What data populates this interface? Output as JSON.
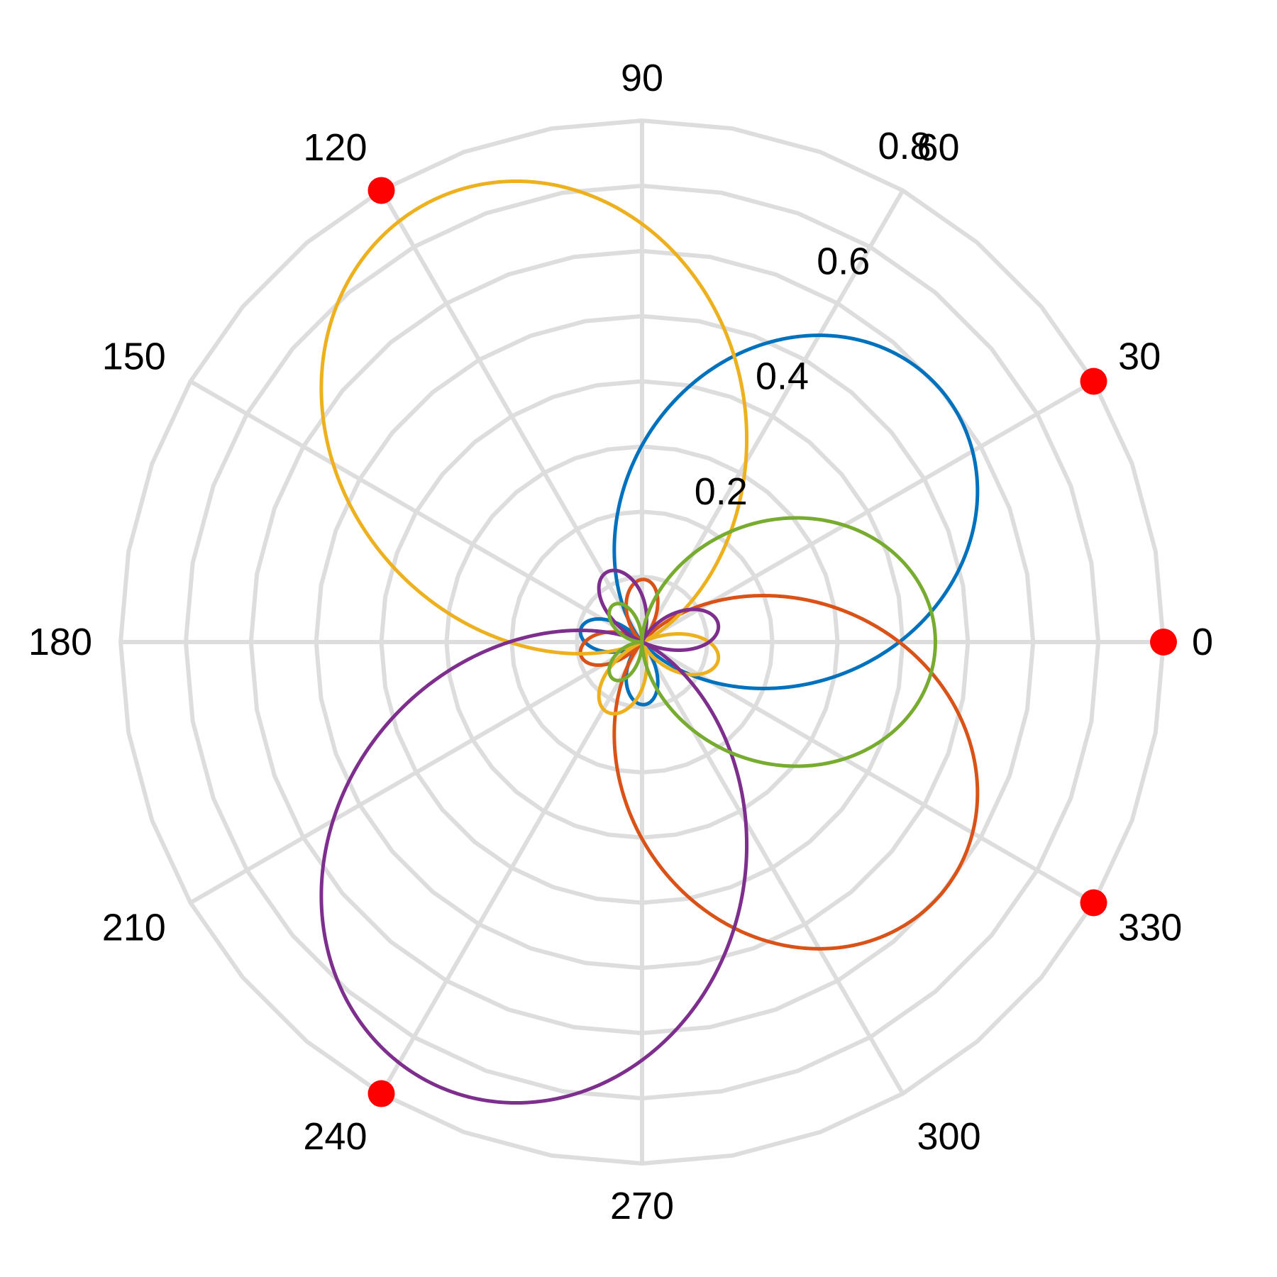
{
  "chart_data": {
    "type": "polar-line",
    "title": "",
    "r_range": [
      0,
      0.8
    ],
    "r_ticks": [
      {
        "value": 0.2,
        "label": "0.2"
      },
      {
        "value": 0.4,
        "label": "0.4"
      },
      {
        "value": 0.6,
        "label": "0.6"
      },
      {
        "value": 0.8,
        "label": "0.8"
      }
    ],
    "theta_ticks": [
      {
        "value": 0,
        "label": "0"
      },
      {
        "value": 30,
        "label": "30"
      },
      {
        "value": 60,
        "label": "60"
      },
      {
        "value": 90,
        "label": "90"
      },
      {
        "value": 120,
        "label": "120"
      },
      {
        "value": 150,
        "label": "150"
      },
      {
        "value": 180,
        "label": "180"
      },
      {
        "value": 210,
        "label": "210"
      },
      {
        "value": 240,
        "label": "240"
      },
      {
        "value": 270,
        "label": "270"
      },
      {
        "value": 300,
        "label": "300"
      },
      {
        "value": 330,
        "label": "330"
      }
    ],
    "theta_unit": "degrees",
    "grid": true,
    "grid_color": "#dddddd",
    "series": [
      {
        "color": "#0072bd",
        "peak_theta": 40,
        "peak_r": 0.6,
        "function": "r = 0.6*|sinc(2*(theta-40deg)/pi)|^1.2"
      },
      {
        "color": "#d95319",
        "peak_theta": 320,
        "peak_r": 0.6,
        "function": "r = 0.6*|sinc(2*(theta-320deg)/pi)|^1.2"
      },
      {
        "color": "#edb120",
        "peak_theta": 115,
        "peak_r": 0.75,
        "function": "r = 0.75*|sinc(2*(theta-115deg)/pi)|^1.2"
      },
      {
        "color": "#7e2f8e",
        "peak_theta": 245,
        "peak_r": 0.75,
        "function": "r = 0.75*|sinc(2*(theta-245deg)/pi)|^1.2"
      },
      {
        "color": "#77ac30",
        "peak_theta": 0,
        "peak_r": 0.45,
        "function": "r = 0.45*|sinc(2*theta/pi)|^1.2"
      }
    ],
    "markers": {
      "color": "#ff0000",
      "points": [
        {
          "theta": 0,
          "r": 0.8
        },
        {
          "theta": 30,
          "r": 0.8
        },
        {
          "theta": 120,
          "r": 0.8
        },
        {
          "theta": 240,
          "r": 0.8
        },
        {
          "theta": 330,
          "r": 0.8
        }
      ]
    }
  }
}
